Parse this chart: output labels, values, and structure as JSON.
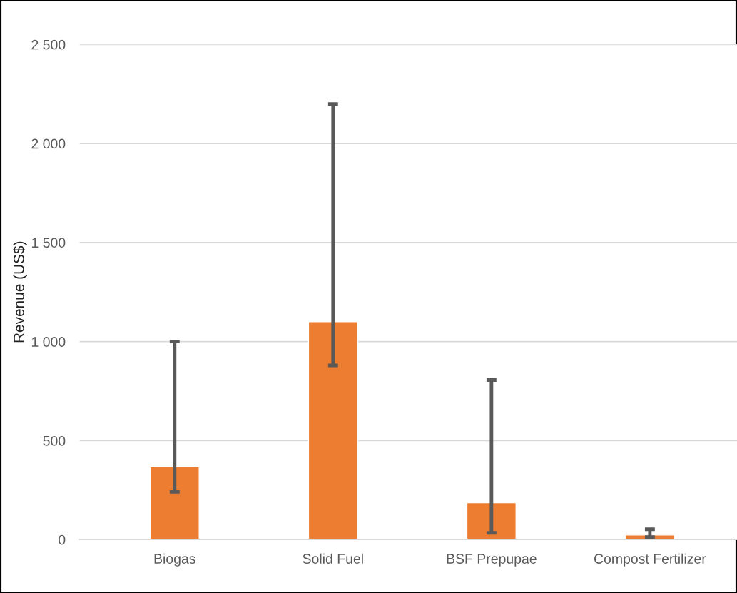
{
  "chart_data": {
    "type": "bar",
    "ylabel": "Revenue (US$)",
    "categories": [
      "Biogas",
      "Solid Fuel",
      "BSF Prepupae",
      "Compost Fertilizer"
    ],
    "values": [
      367,
      1100,
      186,
      23
    ],
    "errors": [
      [
        241,
        1000
      ],
      [
        880,
        2200
      ],
      [
        34,
        806
      ],
      [
        13,
        52
      ]
    ],
    "color": "#ed7d31",
    "ylim": [
      0,
      2500
    ],
    "yticks": [
      {
        "value": 0,
        "label": "0"
      },
      {
        "value": 500,
        "label": "500"
      },
      {
        "value": 1000,
        "label": "1 000"
      },
      {
        "value": 1500,
        "label": "1 500"
      },
      {
        "value": 2000,
        "label": "2 000"
      },
      {
        "value": 2500,
        "label": "2 500"
      }
    ],
    "grid": "y"
  }
}
